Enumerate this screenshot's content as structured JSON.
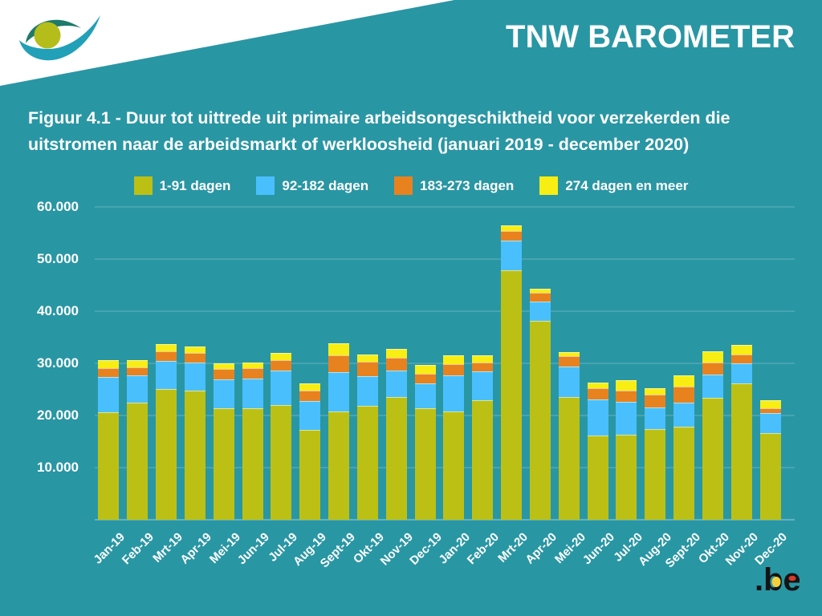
{
  "header": {
    "brand": "TNW BAROMETER",
    "logo_name": "social-security-eye-logo"
  },
  "title": {
    "lines": [
      "Figuur 4.1 - Duur tot uittrede uit primaire arbeidsongeschiktheid voor verzekerden die",
      "uitstromen naar de arbeidsmarkt of werkloosheid (januari 2019 - december 2020)"
    ]
  },
  "footer": {
    "be_logo_text": ".be"
  },
  "colors": {
    "background": "#2996a4",
    "text": "#ffffff",
    "series_1": "#bcc014",
    "series_2": "#49c0fd",
    "series_3": "#e8821e",
    "series_4": "#f9ee14",
    "logo_pine": "#1e7a6a",
    "logo_swoosh": "#21a0b8",
    "logo_olive": "#b5bd1a",
    "be_black": "#141414",
    "be_yellow": "#f3d03e",
    "be_red": "#d93a2b"
  },
  "chart_data": {
    "type": "bar",
    "stacked": true,
    "title": "Figuur 4.1 - Duur tot uittrede uit primaire arbeidsongeschiktheid voor verzekerden die uitstromen naar de arbeidsmarkt of werkloosheid (januari 2019 - december 2020)",
    "xlabel": "",
    "ylabel": "",
    "ylim": [
      0,
      62000
    ],
    "grid": true,
    "legend_position": "top",
    "yticks": [
      10000,
      20000,
      30000,
      40000,
      50000,
      60000
    ],
    "ytick_labels": [
      "10.000",
      "20.000",
      "30.000",
      "40.000",
      "50.000",
      "60.000"
    ],
    "categories": [
      "Jan-19",
      "Feb-19",
      "Mrt-19",
      "Apr-19",
      "Mei-19",
      "Jun-19",
      "Jul-19",
      "Aug-19",
      "Sept-19",
      "Okt-19",
      "Nov-19",
      "Dec-19",
      "Jan-20",
      "Feb-20",
      "Mrt-20",
      "Apr-20",
      "Mei-20",
      "Jun-20",
      "Jul-20",
      "Aug-20",
      "Sept-20",
      "Okt-20",
      "Nov-20",
      "Dec-20"
    ],
    "series": [
      {
        "name": "1-91 dagen",
        "color": "#bcc014",
        "values": [
          20550,
          22500,
          25100,
          24800,
          21400,
          21400,
          21950,
          17250,
          20700,
          21900,
          23550,
          21350,
          20800,
          22900,
          47800,
          38100,
          23550,
          16200,
          16250,
          17400,
          17900,
          23400,
          26200,
          16600
        ]
      },
      {
        "name": "92-182 dagen",
        "color": "#49c0fd",
        "values": [
          6800,
          5250,
          5400,
          5300,
          5500,
          5750,
          6600,
          5550,
          7550,
          5600,
          5100,
          4750,
          6900,
          5600,
          5750,
          3800,
          5800,
          6850,
          6350,
          4200,
          4500,
          4500,
          3750,
          3850
        ]
      },
      {
        "name": "183-273 dagen",
        "color": "#e8821e",
        "values": [
          1800,
          1450,
          1800,
          1900,
          2050,
          1900,
          2000,
          1950,
          3350,
          2850,
          2450,
          1950,
          2200,
          1700,
          1800,
          1700,
          2000,
          2150,
          2100,
          2400,
          3200,
          2200,
          1700,
          900
        ]
      },
      {
        "name": "274 dagen en meer",
        "color": "#f9ee14",
        "values": [
          1400,
          1400,
          1400,
          1300,
          1100,
          1150,
          1450,
          1450,
          2200,
          1400,
          1650,
          1650,
          1650,
          1400,
          1150,
          650,
          800,
          1150,
          2050,
          1200,
          2150,
          2150,
          1900,
          1550
        ]
      }
    ]
  }
}
